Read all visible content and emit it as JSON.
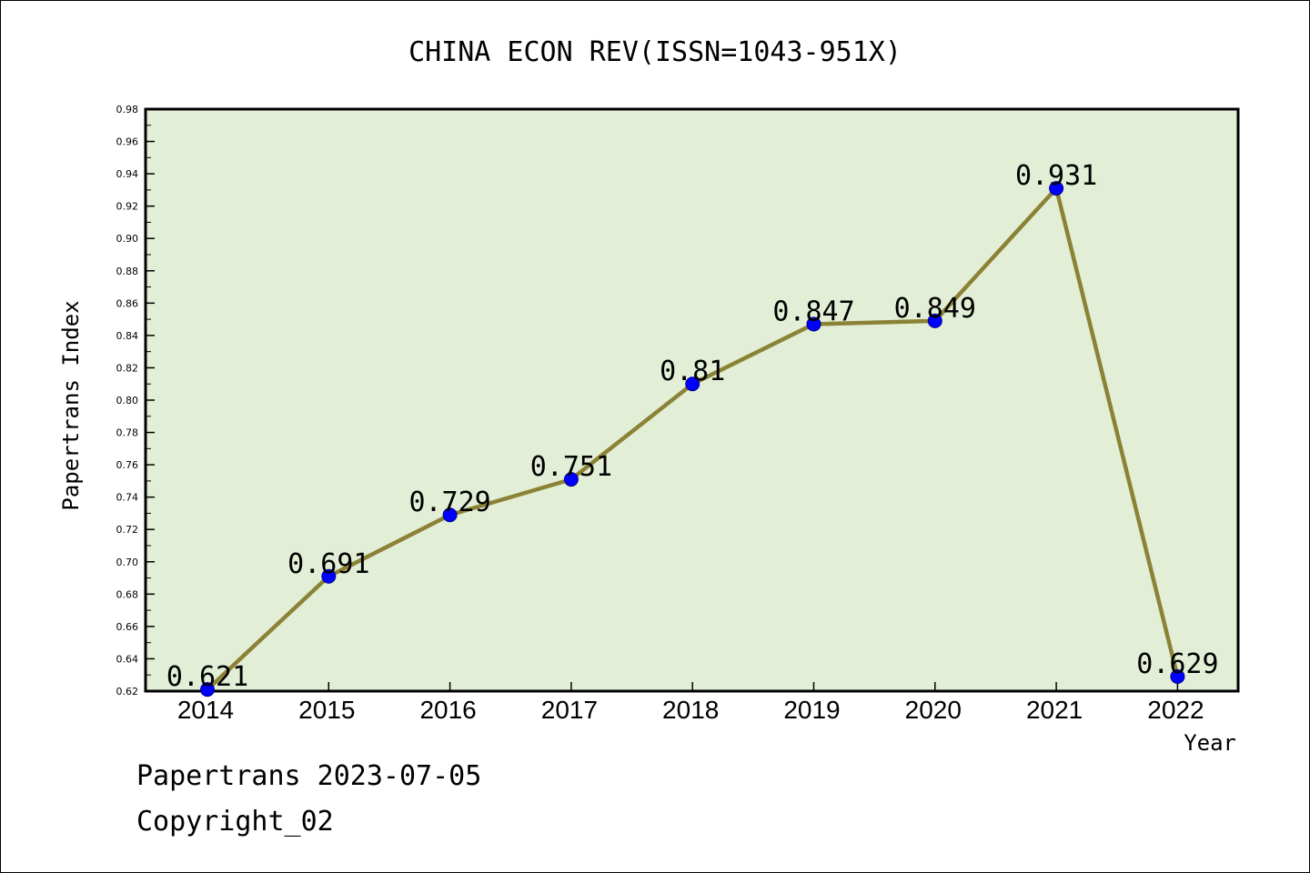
{
  "chart_data": {
    "type": "line",
    "title": "CHINA ECON REV(ISSN=1043-951X)",
    "xlabel": "Year",
    "ylabel": "Papertrans Index",
    "categories": [
      "2014",
      "2015",
      "2016",
      "2017",
      "2018",
      "2019",
      "2020",
      "2021",
      "2022"
    ],
    "series": [
      {
        "values": [
          0.621,
          0.691,
          0.729,
          0.751,
          0.81,
          0.847,
          0.849,
          0.931,
          0.629
        ],
        "data_labels": [
          "0.621",
          "0.691",
          "0.729",
          "0.751",
          "0.81",
          "0.847",
          "0.849",
          "0.931",
          "0.629"
        ]
      }
    ],
    "ylim": [
      0.62,
      0.98
    ],
    "yticks": [
      "0.62",
      "0.64",
      "0.66",
      "0.68",
      "0.70",
      "0.72",
      "0.74",
      "0.76",
      "0.78",
      "0.80",
      "0.82",
      "0.84",
      "0.86",
      "0.88",
      "0.90",
      "0.92",
      "0.94",
      "0.96",
      "0.98"
    ],
    "grid": false,
    "legend": "none",
    "colors": {
      "plot_background": "#e2efd6",
      "line": "#8b8236",
      "marker": "#0000ff",
      "frame": "#000000"
    }
  },
  "footer": {
    "line1": "Papertrans 2023-07-05",
    "line2": "Copyright_02"
  }
}
